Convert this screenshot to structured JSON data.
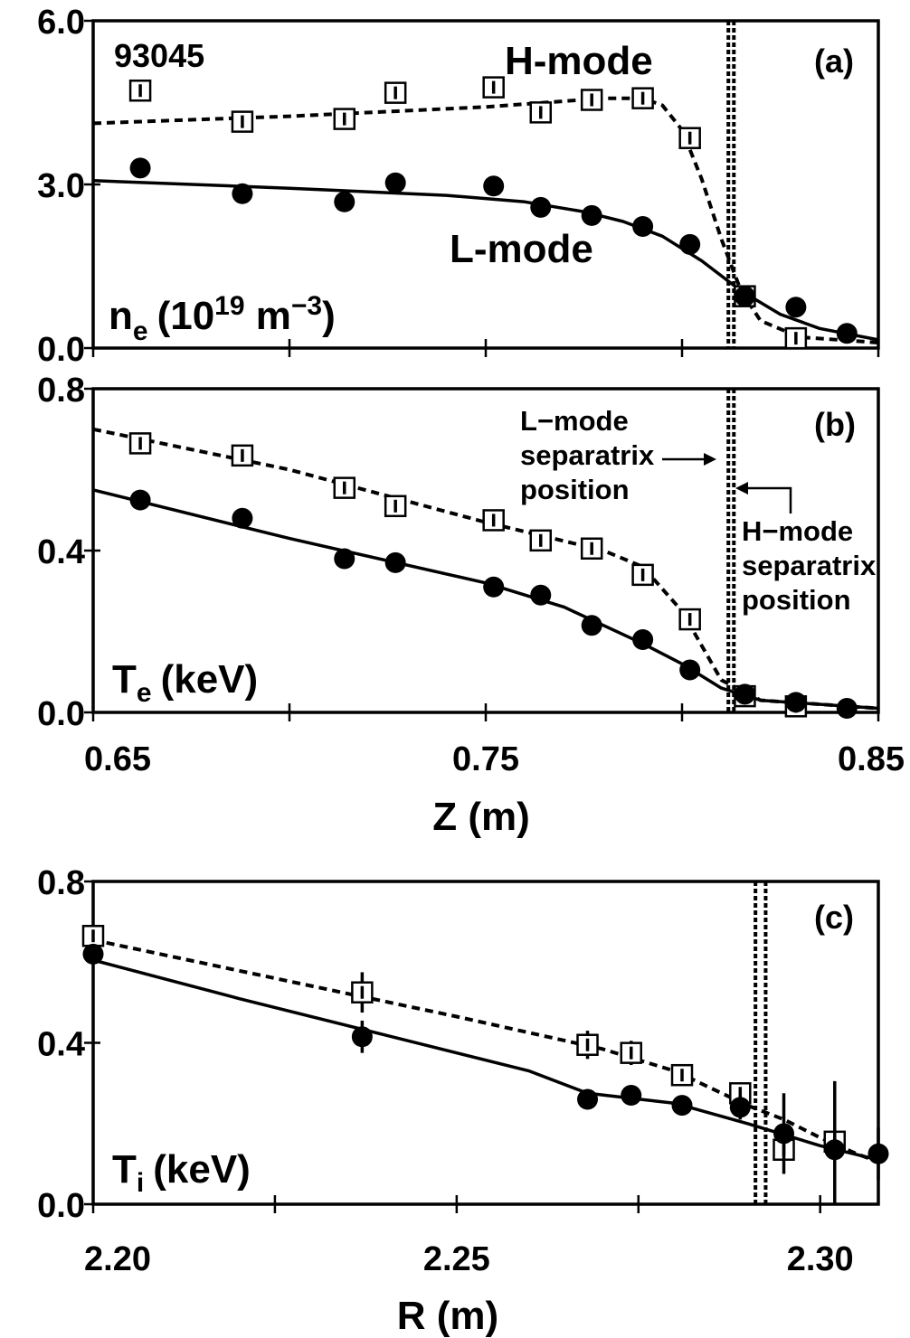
{
  "figure": {
    "shot_label": "93045",
    "colors": {
      "ink": "#000000",
      "paper": "#ffffff"
    },
    "symbols": {
      "l_mode": "filled-circle",
      "h_mode": "open-square"
    }
  },
  "chart_data": [
    {
      "id": "a",
      "type": "scatter",
      "panel_tag": "(a)",
      "ylabel": {
        "main": "n",
        "sub": "e",
        "unit": "(10",
        "sup": "19",
        "unit2": " m",
        "sup2": "−3",
        "close": ")"
      },
      "xlim": [
        0.65,
        0.85
      ],
      "ylim": [
        0.0,
        6.0
      ],
      "yticks": [
        0.0,
        3.0,
        6.0
      ],
      "ytick_labels": [
        "0.0",
        "3.0",
        "6.0"
      ],
      "xticks": [
        0.65,
        0.7,
        0.75,
        0.8,
        0.85
      ],
      "separatrix": [
        0.8118,
        0.8132
      ],
      "series": [
        {
          "name": "H-mode",
          "style": "dashed",
          "marker": "open-square",
          "points": [
            {
              "x": 0.662,
              "y": 4.72
            },
            {
              "x": 0.688,
              "y": 4.15
            },
            {
              "x": 0.714,
              "y": 4.2
            },
            {
              "x": 0.727,
              "y": 4.68
            },
            {
              "x": 0.752,
              "y": 4.78
            },
            {
              "x": 0.764,
              "y": 4.32
            },
            {
              "x": 0.777,
              "y": 4.55
            },
            {
              "x": 0.79,
              "y": 4.58
            },
            {
              "x": 0.802,
              "y": 3.85
            },
            {
              "x": 0.816,
              "y": 0.95
            },
            {
              "x": 0.829,
              "y": 0.18
            }
          ],
          "fit": [
            {
              "x": 0.65,
              "y": 4.12
            },
            {
              "x": 0.7,
              "y": 4.25
            },
            {
              "x": 0.75,
              "y": 4.42
            },
            {
              "x": 0.78,
              "y": 4.58
            },
            {
              "x": 0.79,
              "y": 4.58
            },
            {
              "x": 0.795,
              "y": 4.45
            },
            {
              "x": 0.8,
              "y": 4.0
            },
            {
              "x": 0.805,
              "y": 3.1
            },
            {
              "x": 0.81,
              "y": 2.0
            },
            {
              "x": 0.815,
              "y": 1.05
            },
            {
              "x": 0.82,
              "y": 0.5
            },
            {
              "x": 0.83,
              "y": 0.2
            },
            {
              "x": 0.85,
              "y": 0.1
            }
          ]
        },
        {
          "name": "L-mode",
          "style": "solid",
          "marker": "filled-circle",
          "points": [
            {
              "x": 0.662,
              "y": 3.3
            },
            {
              "x": 0.688,
              "y": 2.83
            },
            {
              "x": 0.714,
              "y": 2.68
            },
            {
              "x": 0.727,
              "y": 3.03
            },
            {
              "x": 0.752,
              "y": 2.97
            },
            {
              "x": 0.764,
              "y": 2.58
            },
            {
              "x": 0.777,
              "y": 2.43
            },
            {
              "x": 0.79,
              "y": 2.23
            },
            {
              "x": 0.802,
              "y": 1.9
            },
            {
              "x": 0.816,
              "y": 0.95
            },
            {
              "x": 0.829,
              "y": 0.75
            },
            {
              "x": 0.842,
              "y": 0.27
            }
          ],
          "fit": [
            {
              "x": 0.65,
              "y": 3.07
            },
            {
              "x": 0.7,
              "y": 2.93
            },
            {
              "x": 0.74,
              "y": 2.8
            },
            {
              "x": 0.76,
              "y": 2.68
            },
            {
              "x": 0.775,
              "y": 2.5
            },
            {
              "x": 0.785,
              "y": 2.32
            },
            {
              "x": 0.795,
              "y": 2.05
            },
            {
              "x": 0.805,
              "y": 1.6
            },
            {
              "x": 0.815,
              "y": 1.05
            },
            {
              "x": 0.825,
              "y": 0.62
            },
            {
              "x": 0.835,
              "y": 0.36
            },
            {
              "x": 0.85,
              "y": 0.15
            }
          ]
        }
      ]
    },
    {
      "id": "b",
      "type": "scatter",
      "panel_tag": "(b)",
      "ylabel": {
        "main": "T",
        "sub": "e",
        "unit": "(keV)"
      },
      "xlabel": "Z (m)",
      "xlim": [
        0.65,
        0.85
      ],
      "ylim": [
        0.0,
        0.8
      ],
      "yticks": [
        0.0,
        0.4,
        0.8
      ],
      "ytick_labels": [
        "0.0",
        "0.4",
        "0.8"
      ],
      "xticks": [
        0.65,
        0.7,
        0.75,
        0.8,
        0.85
      ],
      "xtick_labels": [
        "0.65",
        "0.75",
        "0.85"
      ],
      "xtick_label_values": [
        0.65,
        0.75,
        0.85
      ],
      "separatrix": [
        0.8118,
        0.8132
      ],
      "annotations": {
        "l_mode": [
          "L−mode",
          "separatrix",
          "position"
        ],
        "h_mode": [
          "H−mode",
          "separatrix",
          "position"
        ]
      },
      "series": [
        {
          "name": "H-mode",
          "style": "dashed",
          "marker": "open-square",
          "points": [
            {
              "x": 0.662,
              "y": 0.665
            },
            {
              "x": 0.688,
              "y": 0.635
            },
            {
              "x": 0.714,
              "y": 0.555
            },
            {
              "x": 0.727,
              "y": 0.51
            },
            {
              "x": 0.752,
              "y": 0.475
            },
            {
              "x": 0.764,
              "y": 0.425
            },
            {
              "x": 0.777,
              "y": 0.405
            },
            {
              "x": 0.79,
              "y": 0.34
            },
            {
              "x": 0.802,
              "y": 0.23
            },
            {
              "x": 0.816,
              "y": 0.04
            },
            {
              "x": 0.829,
              "y": 0.015
            }
          ],
          "fit": [
            {
              "x": 0.65,
              "y": 0.7
            },
            {
              "x": 0.7,
              "y": 0.6
            },
            {
              "x": 0.75,
              "y": 0.47
            },
            {
              "x": 0.78,
              "y": 0.4
            },
            {
              "x": 0.79,
              "y": 0.36
            },
            {
              "x": 0.8,
              "y": 0.25
            },
            {
              "x": 0.81,
              "y": 0.08
            },
            {
              "x": 0.82,
              "y": 0.03
            },
            {
              "x": 0.85,
              "y": 0.01
            }
          ]
        },
        {
          "name": "L-mode",
          "style": "solid",
          "marker": "filled-circle",
          "points": [
            {
              "x": 0.662,
              "y": 0.525
            },
            {
              "x": 0.688,
              "y": 0.48
            },
            {
              "x": 0.714,
              "y": 0.38
            },
            {
              "x": 0.727,
              "y": 0.37
            },
            {
              "x": 0.752,
              "y": 0.31
            },
            {
              "x": 0.764,
              "y": 0.29
            },
            {
              "x": 0.777,
              "y": 0.215
            },
            {
              "x": 0.79,
              "y": 0.18
            },
            {
              "x": 0.802,
              "y": 0.105
            },
            {
              "x": 0.816,
              "y": 0.045
            },
            {
              "x": 0.829,
              "y": 0.025
            },
            {
              "x": 0.842,
              "y": 0.01
            }
          ],
          "fit": [
            {
              "x": 0.65,
              "y": 0.55
            },
            {
              "x": 0.7,
              "y": 0.43
            },
            {
              "x": 0.75,
              "y": 0.32
            },
            {
              "x": 0.77,
              "y": 0.26
            },
            {
              "x": 0.79,
              "y": 0.17
            },
            {
              "x": 0.8,
              "y": 0.12
            },
            {
              "x": 0.81,
              "y": 0.06
            },
            {
              "x": 0.82,
              "y": 0.03
            },
            {
              "x": 0.85,
              "y": 0.01
            }
          ]
        }
      ]
    },
    {
      "id": "c",
      "type": "scatter",
      "panel_tag": "(c)",
      "ylabel": {
        "main": "T",
        "sub": "i",
        "unit": "(keV)"
      },
      "xlabel": "R (m)",
      "xlim": [
        2.2,
        2.308
      ],
      "ylim": [
        0.0,
        0.8
      ],
      "yticks": [
        0.0,
        0.4,
        0.8
      ],
      "ytick_labels": [
        "0.0",
        "0.4",
        "0.8"
      ],
      "xticks": [
        2.2,
        2.225,
        2.25,
        2.275,
        2.3
      ],
      "xtick_labels": [
        "2.20",
        "2.25",
        "2.30"
      ],
      "xtick_label_values": [
        2.2,
        2.25,
        2.3
      ],
      "separatrix": [
        2.2911,
        2.2925
      ],
      "series": [
        {
          "name": "H-mode",
          "style": "dashed",
          "marker": "open-square",
          "points": [
            {
              "x": 2.2,
              "y": 0.665,
              "err": 0.0
            },
            {
              "x": 2.237,
              "y": 0.525,
              "err": 0.05
            },
            {
              "x": 2.268,
              "y": 0.395,
              "err": 0.035
            },
            {
              "x": 2.274,
              "y": 0.375,
              "err": 0.03
            },
            {
              "x": 2.281,
              "y": 0.32,
              "err": 0.025
            },
            {
              "x": 2.289,
              "y": 0.275,
              "err": 0.02
            },
            {
              "x": 2.295,
              "y": 0.135,
              "err": 0.0
            },
            {
              "x": 2.302,
              "y": 0.155,
              "err": 0.0
            }
          ],
          "fit": [
            {
              "x": 2.2,
              "y": 0.655
            },
            {
              "x": 2.225,
              "y": 0.56
            },
            {
              "x": 2.25,
              "y": 0.465
            },
            {
              "x": 2.27,
              "y": 0.385
            },
            {
              "x": 2.28,
              "y": 0.33
            },
            {
              "x": 2.29,
              "y": 0.245
            },
            {
              "x": 2.295,
              "y": 0.21
            },
            {
              "x": 2.3,
              "y": 0.165
            },
            {
              "x": 2.305,
              "y": 0.125
            },
            {
              "x": 2.308,
              "y": 0.105
            }
          ]
        },
        {
          "name": "L-mode",
          "style": "solid",
          "marker": "filled-circle",
          "points": [
            {
              "x": 2.2,
              "y": 0.62,
              "err": 0.0
            },
            {
              "x": 2.237,
              "y": 0.415,
              "err": 0.04
            },
            {
              "x": 2.268,
              "y": 0.26,
              "err": 0.0
            },
            {
              "x": 2.274,
              "y": 0.27,
              "err": 0.0
            },
            {
              "x": 2.281,
              "y": 0.245,
              "err": 0.0
            },
            {
              "x": 2.289,
              "y": 0.24,
              "err": 0.03
            },
            {
              "x": 2.295,
              "y": 0.175,
              "err": 0.1
            },
            {
              "x": 2.302,
              "y": 0.135,
              "err": 0.17
            },
            {
              "x": 2.308,
              "y": 0.125,
              "err": 0.065
            }
          ],
          "fit": [
            {
              "x": 2.2,
              "y": 0.605
            },
            {
              "x": 2.22,
              "y": 0.51
            },
            {
              "x": 2.24,
              "y": 0.42
            },
            {
              "x": 2.26,
              "y": 0.33
            },
            {
              "x": 2.268,
              "y": 0.275
            },
            {
              "x": 2.28,
              "y": 0.25
            },
            {
              "x": 2.29,
              "y": 0.2
            },
            {
              "x": 2.3,
              "y": 0.145
            },
            {
              "x": 2.308,
              "y": 0.11
            }
          ]
        }
      ]
    }
  ]
}
